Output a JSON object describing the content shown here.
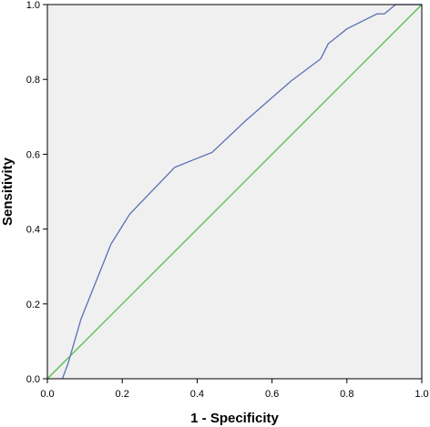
{
  "chart_data": {
    "type": "line",
    "xlabel": "1 - Specificity",
    "ylabel": "Sensitivity",
    "xlim": [
      0.0,
      1.0
    ],
    "ylim": [
      0.0,
      1.0
    ],
    "x_ticks": [
      "0.0",
      "0.2",
      "0.4",
      "0.6",
      "0.8",
      "1.0"
    ],
    "y_ticks": [
      "0.0",
      "0.2",
      "0.4",
      "0.6",
      "0.8",
      "1.0"
    ],
    "grid": false,
    "colors": {
      "background": "#f0f0f0",
      "roc": "#5b6fb5",
      "reference": "#4cc04c"
    },
    "series": [
      {
        "x": [
          0.04,
          0.055,
          0.09,
          0.17,
          0.22,
          0.34,
          0.44,
          0.53,
          0.65,
          0.73,
          0.75,
          0.8,
          0.88,
          0.9,
          0.93,
          1.0
        ],
        "y": [
          0.0,
          0.04,
          0.16,
          0.36,
          0.44,
          0.565,
          0.605,
          0.69,
          0.795,
          0.855,
          0.895,
          0.935,
          0.975,
          0.975,
          1.0,
          1.0
        ]
      },
      {
        "x": [
          0.0,
          1.0
        ],
        "y": [
          0.0,
          1.0
        ]
      }
    ]
  }
}
